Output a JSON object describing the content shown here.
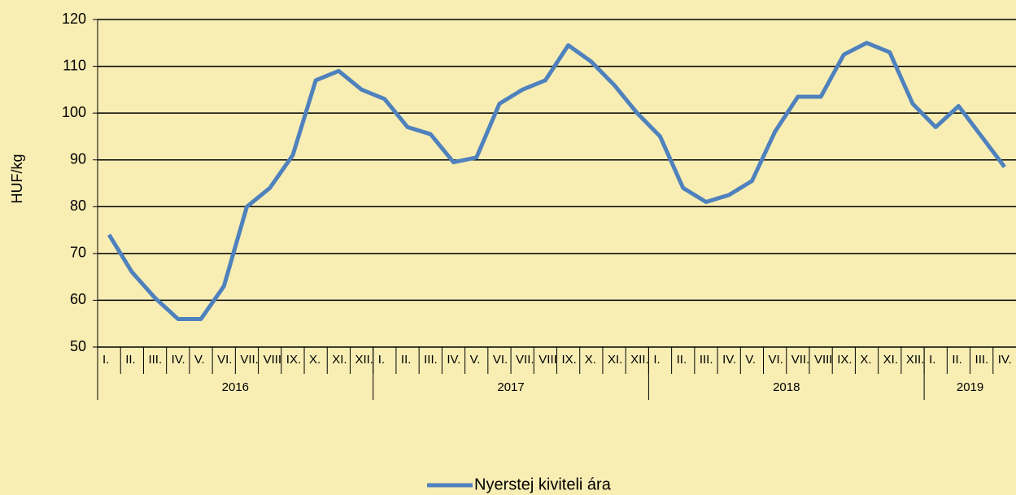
{
  "chart_data": {
    "type": "line",
    "y_label": "HUF/kg",
    "categories": [
      "I.",
      "II.",
      "III.",
      "IV.",
      "V.",
      "VI.",
      "VII.",
      "VIII.",
      "IX.",
      "X.",
      "XI.",
      "XII.",
      "I.",
      "II.",
      "III.",
      "IV.",
      "V.",
      "VI.",
      "VII.",
      "VIII.",
      "IX.",
      "X.",
      "XI.",
      "XII.",
      "I.",
      "II.",
      "III.",
      "IV.",
      "V.",
      "VI.",
      "VII.",
      "VIII.",
      "IX.",
      "X.",
      "XI.",
      "XII.",
      "I.",
      "II.",
      "III.",
      "IV."
    ],
    "groups": [
      {
        "label": "2016",
        "count": 12
      },
      {
        "label": "2017",
        "count": 12
      },
      {
        "label": "2018",
        "count": 12
      },
      {
        "label": "2019",
        "count": 4
      }
    ],
    "series": [
      {
        "name": "Nyerstej kiviteli ára",
        "color": "#4f81bd",
        "values": [
          74,
          66,
          60.5,
          56,
          56,
          63,
          80,
          84,
          91,
          107,
          109,
          105,
          103,
          97,
          95.5,
          89.5,
          90.5,
          102,
          105,
          107,
          114.5,
          111,
          106,
          100,
          95,
          84,
          81,
          82.5,
          85.5,
          96,
          103.5,
          103.5,
          112.5,
          115,
          113,
          102,
          97,
          101.5,
          95,
          88.5
        ]
      }
    ],
    "ylim": [
      50,
      120
    ],
    "yticks": [
      50,
      60,
      70,
      80,
      90,
      100,
      110,
      120
    ],
    "grid": true,
    "legend": "bottom"
  }
}
